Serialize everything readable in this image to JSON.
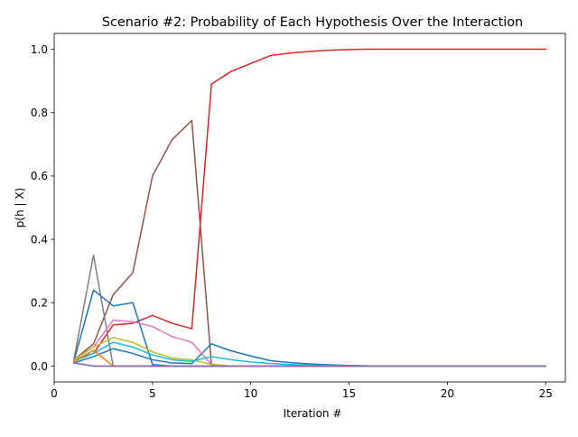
{
  "chart_data": {
    "type": "line",
    "title": "Scenario #2: Probability of Each Hypothesis Over the Interaction",
    "xlabel": "Iteration #",
    "ylabel": "p(h | X)",
    "xlim": [
      0,
      26
    ],
    "ylim": [
      -0.05,
      1.05
    ],
    "xticks": [
      0,
      5,
      10,
      15,
      20,
      25
    ],
    "yticks": [
      0.0,
      0.2,
      0.4,
      0.6,
      0.8,
      1.0
    ],
    "ytick_labels": [
      "0.0",
      "0.2",
      "0.4",
      "0.6",
      "0.8",
      "1.0"
    ],
    "grid": false,
    "legend": "none",
    "x": [
      1,
      2,
      3,
      4,
      5,
      6,
      7,
      8,
      9,
      10,
      11,
      12,
      13,
      14,
      15,
      16,
      17,
      18,
      19,
      20,
      21,
      22,
      23,
      24,
      25
    ],
    "series": [
      {
        "color": "#8c564b",
        "values": [
          0.02,
          0.07,
          0.225,
          0.295,
          0.6,
          0.715,
          0.775,
          0.005,
          0,
          0,
          0,
          0,
          0,
          0,
          0,
          0,
          0,
          0,
          0,
          0,
          0,
          0,
          0,
          0,
          0
        ]
      },
      {
        "color": "#d62728",
        "values": [
          0.02,
          0.04,
          0.13,
          0.135,
          0.16,
          0.135,
          0.118,
          0.89,
          0.93,
          0.955,
          0.98,
          0.988,
          0.993,
          0.997,
          0.999,
          1.0,
          1.0,
          1.0,
          1.0,
          1.0,
          1.0,
          1.0,
          1.0,
          1.0,
          1.0
        ]
      },
      {
        "color": "#7f7f7f",
        "values": [
          0.02,
          0.35,
          0.0,
          0,
          0,
          0,
          0,
          0,
          0,
          0,
          0,
          0,
          0,
          0,
          0,
          0,
          0,
          0,
          0,
          0,
          0,
          0,
          0,
          0,
          0
        ]
      },
      {
        "color": "#1f77b4",
        "values": [
          0.015,
          0.24,
          0.19,
          0.2,
          0.005,
          0,
          0,
          0,
          0,
          0,
          0,
          0,
          0,
          0,
          0,
          0,
          0,
          0,
          0,
          0,
          0,
          0,
          0,
          0,
          0
        ]
      },
      {
        "color": "#1f77b4",
        "values": [
          0.01,
          0.03,
          0.055,
          0.04,
          0.02,
          0.01,
          0.008,
          0.07,
          0.048,
          0.032,
          0.017,
          0.011,
          0.007,
          0.004,
          0.002,
          0.001,
          0,
          0,
          0,
          0,
          0,
          0,
          0,
          0,
          0
        ]
      },
      {
        "color": "#e377c2",
        "values": [
          0.02,
          0.06,
          0.145,
          0.14,
          0.125,
          0.093,
          0.075,
          0.005,
          0,
          0,
          0,
          0,
          0,
          0,
          0,
          0,
          0,
          0,
          0,
          0,
          0,
          0,
          0,
          0,
          0
        ]
      },
      {
        "color": "#bcbd22",
        "values": [
          0.02,
          0.06,
          0.09,
          0.075,
          0.045,
          0.025,
          0.02,
          0.005,
          0,
          0,
          0,
          0,
          0,
          0,
          0,
          0,
          0,
          0,
          0,
          0,
          0,
          0,
          0,
          0,
          0
        ]
      },
      {
        "color": "#17becf",
        "values": [
          0.015,
          0.04,
          0.075,
          0.06,
          0.035,
          0.02,
          0.015,
          0.03,
          0.02,
          0.013,
          0.008,
          0.005,
          0.003,
          0.002,
          0.001,
          0,
          0,
          0,
          0,
          0,
          0,
          0,
          0,
          0,
          0
        ]
      },
      {
        "color": "#ff7f0e",
        "values": [
          0.015,
          0.05,
          0.0,
          0,
          0,
          0,
          0,
          0,
          0,
          0,
          0,
          0,
          0,
          0,
          0,
          0,
          0,
          0,
          0,
          0,
          0,
          0,
          0,
          0,
          0
        ]
      },
      {
        "color": "#2ca02c",
        "values": [
          0.01,
          0.0,
          0,
          0,
          0,
          0,
          0,
          0,
          0,
          0,
          0,
          0,
          0,
          0,
          0,
          0,
          0,
          0,
          0,
          0,
          0,
          0,
          0,
          0,
          0
        ]
      },
      {
        "color": "#9467bd",
        "values": [
          0.01,
          0.0,
          0,
          0,
          0,
          0,
          0,
          0,
          0,
          0,
          0,
          0,
          0,
          0,
          0,
          0,
          0,
          0,
          0,
          0,
          0,
          0,
          0,
          0,
          0
        ]
      }
    ]
  }
}
